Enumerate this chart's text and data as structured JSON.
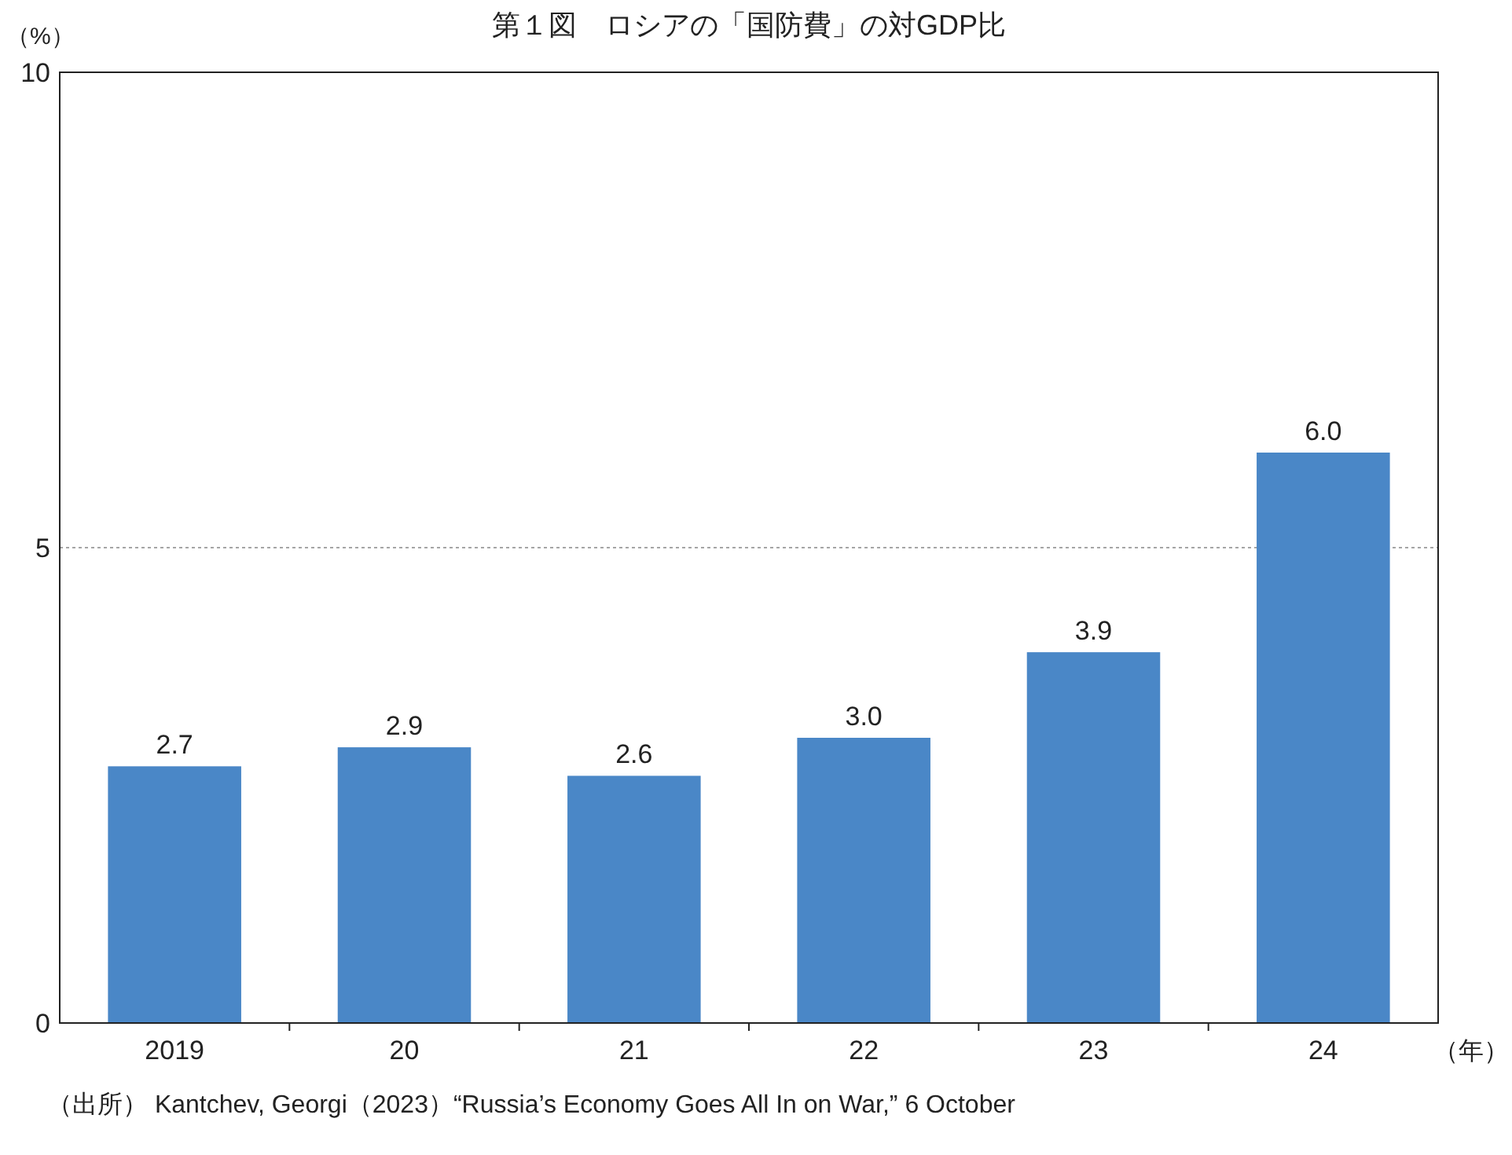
{
  "chart_data": {
    "type": "bar",
    "title": "第１図　ロシアの「国防費」の対GDP比",
    "ylabel": "（%）",
    "xlabel": "（年）",
    "categories": [
      "2019",
      "20",
      "21",
      "22",
      "23",
      "24"
    ],
    "values": [
      2.7,
      2.9,
      2.6,
      3.0,
      3.9,
      6.0
    ],
    "value_labels": [
      "2.7",
      "2.9",
      "2.6",
      "3.0",
      "3.9",
      "6.0"
    ],
    "color": "#4a87c7",
    "ylim": [
      0,
      10
    ],
    "yticks": [
      0,
      5,
      10
    ],
    "grid": "y",
    "annotations": [
      "（出所）  Kantchev, Georgi（2023）“Russia’s Economy Goes All In on War,” 6 October"
    ]
  }
}
